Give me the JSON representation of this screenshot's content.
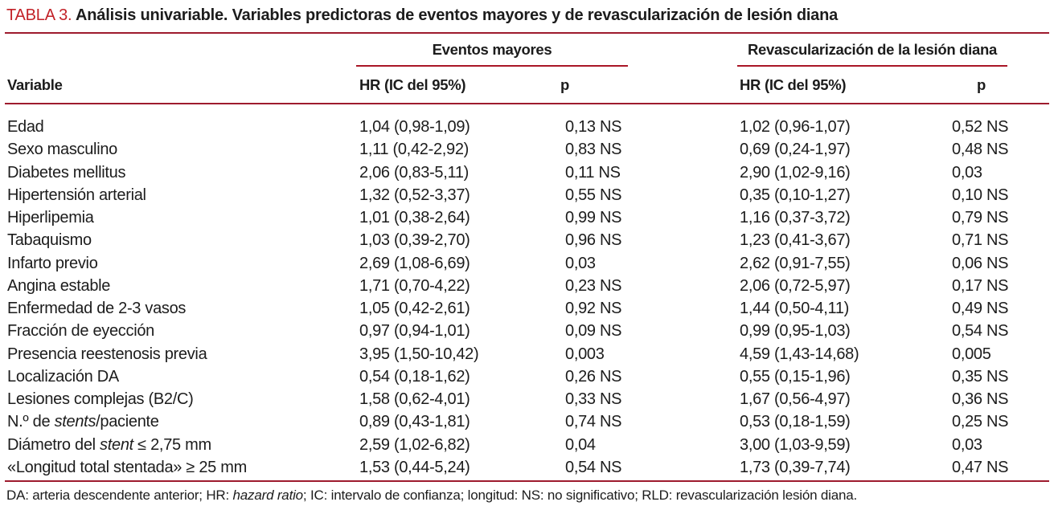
{
  "title": {
    "label": "TABLA 3.",
    "text": "Análisis univariable. Variables predictoras de eventos mayores y de revascularización de lesión diana"
  },
  "colors": {
    "title_red": "#c22127",
    "rule_red": "#9e1b2e",
    "underline_red": "#a91626",
    "text": "#1c1c1c"
  },
  "table": {
    "variable_header": "Variable",
    "groups": [
      {
        "label": "Eventos mayores",
        "hr_header": "HR (IC del 95%)",
        "p_header": "p"
      },
      {
        "label": "Revascularización de la lesión diana",
        "hr_header": "HR (IC del 95%)",
        "p_header": "p"
      }
    ],
    "rows": [
      {
        "name_pre": "Edad",
        "name_italic": "",
        "name_post": "",
        "em_hr": "1,04 (0,98-1,09)",
        "em_p": "0,13 NS",
        "rld_hr": "1,02 (0,96-1,07)",
        "rld_p": "0,52 NS"
      },
      {
        "name_pre": "Sexo masculino",
        "name_italic": "",
        "name_post": "",
        "em_hr": "1,11 (0,42-2,92)",
        "em_p": "0,83 NS",
        "rld_hr": "0,69 (0,24-1,97)",
        "rld_p": "0,48 NS"
      },
      {
        "name_pre": "Diabetes mellitus",
        "name_italic": "",
        "name_post": "",
        "em_hr": "2,06 (0,83-5,11)",
        "em_p": "0,11 NS",
        "rld_hr": "2,90 (1,02-9,16)",
        "rld_p": "0,03"
      },
      {
        "name_pre": "Hipertensión arterial",
        "name_italic": "",
        "name_post": "",
        "em_hr": "1,32 (0,52-3,37)",
        "em_p": "0,55 NS",
        "rld_hr": "0,35 (0,10-1,27)",
        "rld_p": "0,10 NS"
      },
      {
        "name_pre": "Hiperlipemia",
        "name_italic": "",
        "name_post": "",
        "em_hr": "1,01 (0,38-2,64)",
        "em_p": "0,99 NS",
        "rld_hr": "1,16 (0,37-3,72)",
        "rld_p": "0,79 NS"
      },
      {
        "name_pre": "Tabaquismo",
        "name_italic": "",
        "name_post": "",
        "em_hr": "1,03 (0,39-2,70)",
        "em_p": "0,96 NS",
        "rld_hr": "1,23 (0,41-3,67)",
        "rld_p": "0,71 NS"
      },
      {
        "name_pre": "Infarto previo",
        "name_italic": "",
        "name_post": "",
        "em_hr": "2,69 (1,08-6,69)",
        "em_p": "0,03",
        "rld_hr": "2,62 (0,91-7,55)",
        "rld_p": "0,06 NS"
      },
      {
        "name_pre": "Angina estable",
        "name_italic": "",
        "name_post": "",
        "em_hr": "1,71 (0,70-4,22)",
        "em_p": "0,23 NS",
        "rld_hr": "2,06 (0,72-5,97)",
        "rld_p": "0,17 NS"
      },
      {
        "name_pre": "Enfermedad de 2-3 vasos",
        "name_italic": "",
        "name_post": "",
        "em_hr": "1,05 (0,42-2,61)",
        "em_p": "0,92 NS",
        "rld_hr": "1,44 (0,50-4,11)",
        "rld_p": "0,49 NS"
      },
      {
        "name_pre": "Fracción de eyección",
        "name_italic": "",
        "name_post": "",
        "em_hr": "0,97 (0,94-1,01)",
        "em_p": "0,09 NS",
        "rld_hr": "0,99 (0,95-1,03)",
        "rld_p": "0,54 NS"
      },
      {
        "name_pre": "Presencia reestenosis previa",
        "name_italic": "",
        "name_post": "",
        "em_hr": "3,95 (1,50-10,42)",
        "em_p": "0,003",
        "rld_hr": "4,59 (1,43-14,68)",
        "rld_p": "0,005"
      },
      {
        "name_pre": "Localización DA",
        "name_italic": "",
        "name_post": "",
        "em_hr": "0,54 (0,18-1,62)",
        "em_p": "0,26 NS",
        "rld_hr": "0,55 (0,15-1,96)",
        "rld_p": "0,35 NS"
      },
      {
        "name_pre": "Lesiones complejas (B2/C)",
        "name_italic": "",
        "name_post": "",
        "em_hr": "1,58 (0,62-4,01)",
        "em_p": "0,33 NS",
        "rld_hr": "1,67 (0,56-4,97)",
        "rld_p": "0,36 NS"
      },
      {
        "name_pre": "N.º de ",
        "name_italic": "stents",
        "name_post": "/paciente",
        "em_hr": "0,89 (0,43-1,81)",
        "em_p": "0,74 NS",
        "rld_hr": "0,53 (0,18-1,59)",
        "rld_p": "0,25 NS"
      },
      {
        "name_pre": "Diámetro del ",
        "name_italic": "stent",
        "name_post": " ≤ 2,75 mm",
        "em_hr": "2,59 (1,02-6,82)",
        "em_p": "0,04",
        "rld_hr": "3,00 (1,03-9,59)",
        "rld_p": "0,03"
      },
      {
        "name_pre": "«Longitud total stentada» ≥ 25 mm",
        "name_italic": "",
        "name_post": "",
        "em_hr": "1,53 (0,44-5,24)",
        "em_p": "0,54 NS",
        "rld_hr": "1,73 (0,39-7,74)",
        "rld_p": "0,47 NS"
      }
    ]
  },
  "footnote": {
    "pre": "DA: arteria descendente anterior; HR: ",
    "italic": "hazard ratio",
    "post": "; IC: intervalo de confianza; longitud: NS: no significativo; RLD: revascularización lesión diana."
  }
}
